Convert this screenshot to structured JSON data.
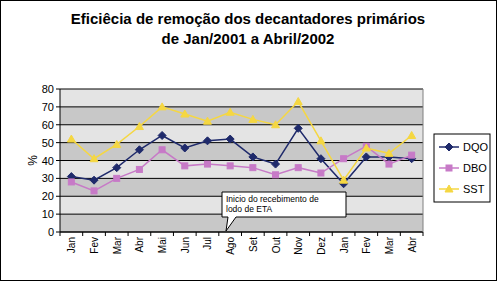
{
  "chart_data": {
    "type": "line",
    "title": [
      "Eficiêcia de remoção dos decantadores primários",
      "de Jan/2001 a Abril/2002"
    ],
    "y_label": "%",
    "annotation": [
      "Inicio do recebimento de",
      "lodo de ETA"
    ],
    "categories": [
      "Jan",
      "Fev",
      "Mar",
      "Abr",
      "Mai",
      "Jun",
      "Jul",
      "Ago",
      "Set",
      "Out",
      "Nov",
      "Dez",
      "Jan",
      "Fev",
      "Mar",
      "Abr"
    ],
    "series": [
      {
        "name": "DQO",
        "color": "#1f2a6b",
        "marker": "diamond",
        "values": [
          31,
          29,
          36,
          46,
          54,
          47,
          51,
          52,
          42,
          38,
          58,
          41,
          27,
          42,
          42,
          41
        ]
      },
      {
        "name": "DBO",
        "color": "#c77ac7",
        "marker": "square",
        "values": [
          28,
          23,
          30,
          35,
          46,
          37,
          38,
          37,
          36,
          32,
          36,
          33,
          41,
          48,
          38,
          43
        ]
      },
      {
        "name": "SST",
        "color": "#f5d742",
        "marker": "triangle",
        "values": [
          52,
          41,
          49,
          59,
          70,
          66,
          62,
          67,
          63,
          60,
          73,
          51,
          29,
          47,
          44,
          54
        ]
      }
    ],
    "ylim": [
      0,
      80
    ],
    "yticks": [
      0,
      10,
      20,
      30,
      40,
      50,
      60,
      70,
      80
    ],
    "grid": true,
    "legend": "right"
  }
}
